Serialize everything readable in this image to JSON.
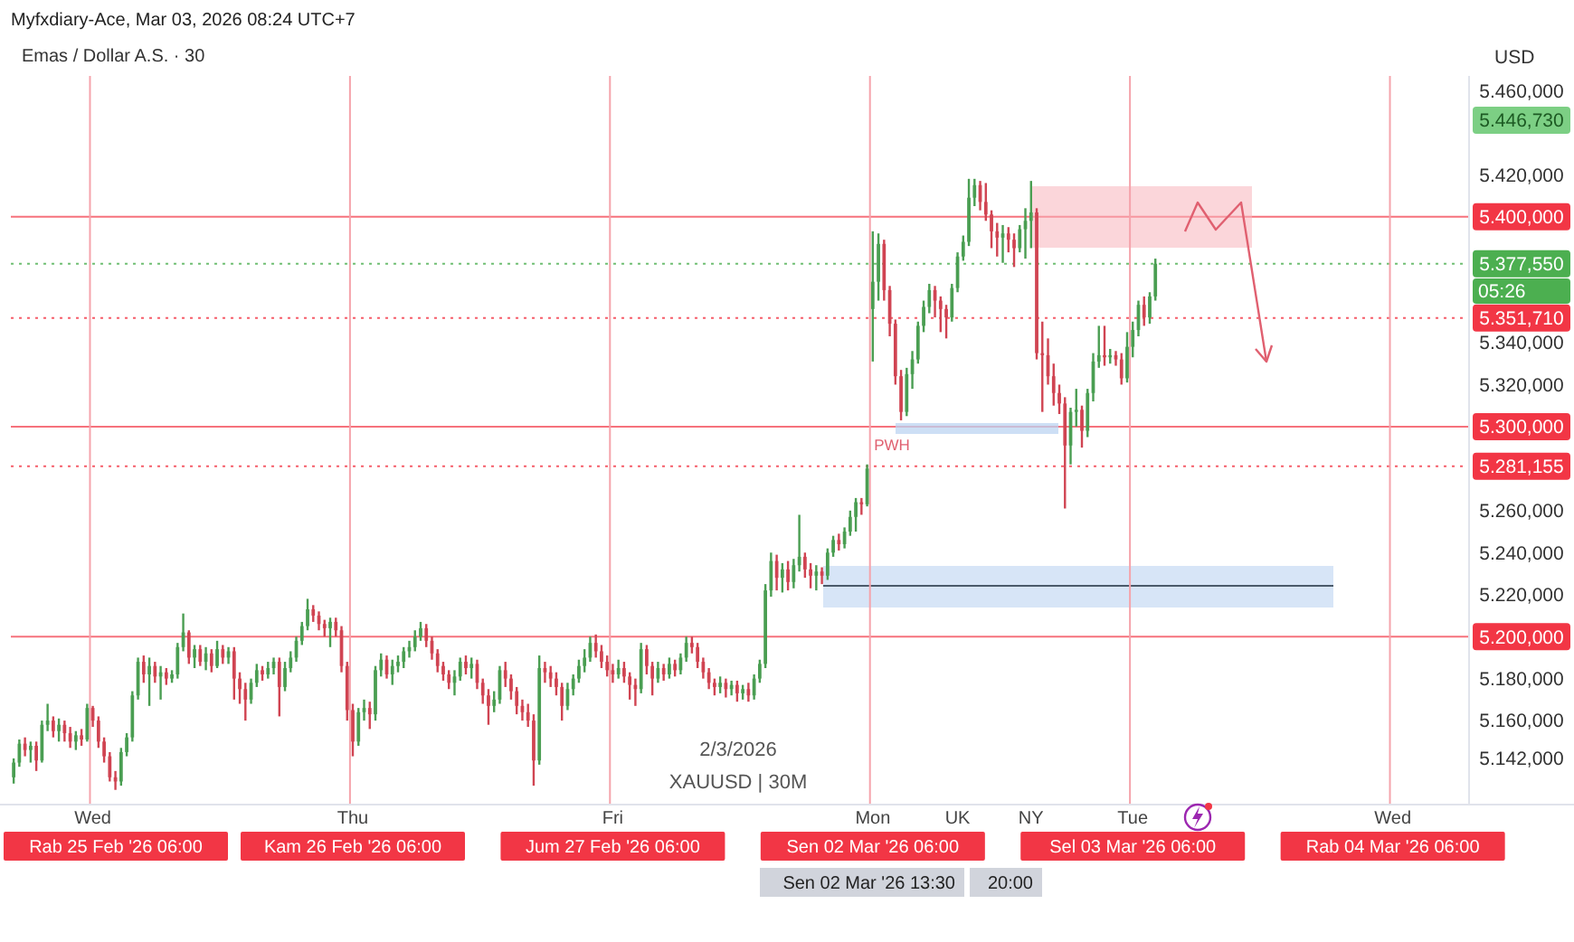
{
  "chart_data": {
    "type": "candlestick",
    "title": "Emas / Dollar A.S. · 30",
    "ylabel": "USD",
    "categories": [
      null,
      null,
      null,
      null,
      null,
      null,
      null,
      null,
      null,
      null,
      null,
      null,
      null,
      null,
      "Wed",
      null,
      null,
      null,
      null,
      null,
      null,
      null,
      null,
      null,
      null,
      null,
      null,
      null,
      null,
      null,
      null,
      null,
      null,
      null,
      null,
      null,
      null,
      null,
      null,
      null,
      null,
      null,
      null,
      null,
      null,
      null,
      null,
      null,
      null,
      null,
      null,
      null,
      null,
      null,
      null,
      null,
      null,
      null,
      null,
      null,
      "Thu",
      null,
      null,
      null,
      null,
      null,
      null,
      null,
      null,
      null,
      null,
      null,
      null,
      null,
      null,
      null,
      null,
      null,
      null,
      null,
      null,
      null,
      null,
      null,
      null,
      null,
      null,
      null,
      null,
      null,
      null,
      null,
      null,
      null,
      null,
      null,
      null,
      null,
      null,
      null,
      null,
      null,
      null,
      null,
      null,
      null,
      "Fri",
      null,
      null,
      null,
      null,
      null,
      null,
      null,
      null,
      null,
      null,
      null,
      null,
      null,
      null,
      null,
      null,
      null,
      null,
      null,
      null,
      null,
      null,
      null,
      null,
      null,
      null,
      null,
      null,
      null,
      null,
      null,
      null,
      null,
      null,
      null,
      null,
      null,
      null,
      null,
      null,
      null,
      null,
      null,
      null,
      null,
      "Mon",
      null,
      null,
      null,
      null,
      null,
      null,
      null,
      null,
      null,
      null,
      null,
      null,
      null,
      null,
      "UK",
      null,
      null,
      null,
      null,
      null,
      null,
      null,
      null,
      null,
      null,
      null,
      null,
      "NY",
      null,
      null,
      null,
      null,
      null,
      null,
      null,
      null,
      null,
      null,
      null,
      null,
      null,
      null,
      null,
      null,
      null,
      "Tue",
      null,
      null,
      null,
      null,
      null,
      null,
      null,
      null,
      null,
      null,
      null,
      null,
      null,
      null,
      null,
      null,
      null,
      null,
      null,
      null,
      null,
      null,
      null,
      null,
      null,
      null,
      null,
      null,
      null,
      null,
      null,
      null,
      null,
      null,
      null,
      null,
      null,
      null,
      null,
      null,
      null,
      null,
      null,
      null,
      null,
      "Wed",
      null,
      null,
      null,
      null,
      null,
      null,
      null,
      null,
      null,
      null,
      null,
      null,
      null
    ],
    "ohlc": [
      [
        5133,
        5142,
        5130,
        5140
      ],
      [
        5140,
        5151,
        5138,
        5149
      ],
      [
        5149,
        5152,
        5143,
        5146
      ],
      [
        5146,
        5150,
        5140,
        5148
      ],
      [
        5148,
        5150,
        5136,
        5141
      ],
      [
        5141,
        5160,
        5140,
        5158
      ],
      [
        5158,
        5168,
        5155,
        5160
      ],
      [
        5160,
        5162,
        5152,
        5155
      ],
      [
        5155,
        5161,
        5150,
        5158
      ],
      [
        5158,
        5160,
        5150,
        5154
      ],
      [
        5154,
        5157,
        5147,
        5150
      ],
      [
        5150,
        5155,
        5146,
        5153
      ],
      [
        5153,
        5156,
        5148,
        5151
      ],
      [
        5151,
        5168,
        5150,
        5166
      ],
      [
        5166,
        5167,
        5157,
        5160
      ],
      [
        5160,
        5162,
        5147,
        5150
      ],
      [
        5150,
        5152,
        5140,
        5143
      ],
      [
        5143,
        5145,
        5131,
        5133
      ],
      [
        5133,
        5136,
        5127,
        5131
      ],
      [
        5131,
        5147,
        5129,
        5145
      ],
      [
        5145,
        5154,
        5143,
        5152
      ],
      [
        5152,
        5174,
        5150,
        5172
      ],
      [
        5172,
        5190,
        5170,
        5188
      ],
      [
        5188,
        5191,
        5178,
        5182
      ],
      [
        5182,
        5190,
        5167,
        5186
      ],
      [
        5186,
        5188,
        5178,
        5181
      ],
      [
        5181,
        5186,
        5170,
        5183
      ],
      [
        5183,
        5185,
        5177,
        5180
      ],
      [
        5180,
        5184,
        5178,
        5182
      ],
      [
        5182,
        5197,
        5180,
        5195
      ],
      [
        5195,
        5211,
        5193,
        5202
      ],
      [
        5202,
        5203,
        5187,
        5190
      ],
      [
        5190,
        5196,
        5185,
        5194
      ],
      [
        5194,
        5196,
        5186,
        5188
      ],
      [
        5188,
        5195,
        5184,
        5192
      ],
      [
        5192,
        5194,
        5183,
        5186
      ],
      [
        5186,
        5198,
        5185,
        5194
      ],
      [
        5194,
        5196,
        5187,
        5190
      ],
      [
        5190,
        5195,
        5187,
        5193
      ],
      [
        5193,
        5195,
        5170,
        5180
      ],
      [
        5180,
        5183,
        5168,
        5175
      ],
      [
        5175,
        5178,
        5160,
        5170
      ],
      [
        5170,
        5180,
        5168,
        5178
      ],
      [
        5178,
        5187,
        5176,
        5184
      ],
      [
        5184,
        5186,
        5179,
        5182
      ],
      [
        5182,
        5188,
        5180,
        5185
      ],
      [
        5185,
        5190,
        5182,
        5188
      ],
      [
        5188,
        5190,
        5162,
        5176
      ],
      [
        5176,
        5188,
        5174,
        5185
      ],
      [
        5185,
        5193,
        5183,
        5190
      ],
      [
        5190,
        5200,
        5188,
        5198
      ],
      [
        5198,
        5207,
        5196,
        5205
      ],
      [
        5205,
        5218,
        5203,
        5213
      ],
      [
        5213,
        5215,
        5207,
        5210
      ],
      [
        5210,
        5212,
        5203,
        5206
      ],
      [
        5206,
        5208,
        5200,
        5204
      ],
      [
        5204,
        5209,
        5195,
        5207
      ],
      [
        5207,
        5209,
        5200,
        5203
      ],
      [
        5203,
        5205,
        5183,
        5186
      ],
      [
        5186,
        5188,
        5160,
        5165
      ],
      [
        5165,
        5168,
        5143,
        5150
      ],
      [
        5150,
        5166,
        5148,
        5164
      ],
      [
        5164,
        5170,
        5160,
        5166
      ],
      [
        5166,
        5169,
        5156,
        5163
      ],
      [
        5163,
        5186,
        5160,
        5184
      ],
      [
        5184,
        5192,
        5181,
        5189
      ],
      [
        5189,
        5191,
        5180,
        5182
      ],
      [
        5182,
        5189,
        5177,
        5186
      ],
      [
        5186,
        5191,
        5183,
        5188
      ],
      [
        5188,
        5195,
        5185,
        5193
      ],
      [
        5193,
        5198,
        5190,
        5195
      ],
      [
        5195,
        5203,
        5193,
        5200
      ],
      [
        5200,
        5207,
        5198,
        5204
      ],
      [
        5204,
        5206,
        5195,
        5198
      ],
      [
        5198,
        5200,
        5189,
        5192
      ],
      [
        5192,
        5194,
        5183,
        5186
      ],
      [
        5186,
        5188,
        5179,
        5182
      ],
      [
        5182,
        5184,
        5175,
        5178
      ],
      [
        5178,
        5184,
        5172,
        5181
      ],
      [
        5181,
        5190,
        5179,
        5188
      ],
      [
        5188,
        5191,
        5182,
        5185
      ],
      [
        5185,
        5190,
        5180,
        5187
      ],
      [
        5187,
        5189,
        5175,
        5178
      ],
      [
        5178,
        5180,
        5168,
        5172
      ],
      [
        5172,
        5175,
        5158,
        5167
      ],
      [
        5167,
        5174,
        5164,
        5170
      ],
      [
        5170,
        5186,
        5168,
        5184
      ],
      [
        5184,
        5188,
        5176,
        5180
      ],
      [
        5180,
        5182,
        5170,
        5174
      ],
      [
        5174,
        5176,
        5163,
        5167
      ],
      [
        5167,
        5170,
        5160,
        5164
      ],
      [
        5164,
        5168,
        5157,
        5160
      ],
      [
        5160,
        5163,
        5129,
        5141
      ],
      [
        5141,
        5191,
        5139,
        5185
      ],
      [
        5185,
        5188,
        5178,
        5183
      ],
      [
        5183,
        5186,
        5176,
        5180
      ],
      [
        5180,
        5183,
        5172,
        5176
      ],
      [
        5176,
        5178,
        5160,
        5167
      ],
      [
        5167,
        5178,
        5165,
        5175
      ],
      [
        5175,
        5182,
        5172,
        5180
      ],
      [
        5180,
        5189,
        5178,
        5186
      ],
      [
        5186,
        5194,
        5183,
        5190
      ],
      [
        5190,
        5200,
        5188,
        5197
      ],
      [
        5197,
        5201,
        5190,
        5193
      ],
      [
        5193,
        5196,
        5185,
        5188
      ],
      [
        5188,
        5191,
        5181,
        5184
      ],
      [
        5184,
        5187,
        5178,
        5182
      ],
      [
        5182,
        5189,
        5180,
        5185
      ],
      [
        5185,
        5188,
        5178,
        5181
      ],
      [
        5181,
        5183,
        5170,
        5177
      ],
      [
        5177,
        5180,
        5167,
        5175
      ],
      [
        5175,
        5197,
        5173,
        5194
      ],
      [
        5194,
        5196,
        5182,
        5186
      ],
      [
        5186,
        5188,
        5172,
        5180
      ],
      [
        5180,
        5188,
        5178,
        5185
      ],
      [
        5185,
        5187,
        5179,
        5182
      ],
      [
        5182,
        5190,
        5180,
        5187
      ],
      [
        5187,
        5189,
        5181,
        5184
      ],
      [
        5184,
        5192,
        5182,
        5190
      ],
      [
        5190,
        5200,
        5188,
        5197
      ],
      [
        5197,
        5200,
        5192,
        5195
      ],
      [
        5195,
        5197,
        5185,
        5188
      ],
      [
        5188,
        5190,
        5180,
        5183
      ],
      [
        5183,
        5185,
        5175,
        5178
      ],
      [
        5178,
        5180,
        5172,
        5176
      ],
      [
        5176,
        5181,
        5173,
        5178
      ],
      [
        5178,
        5180,
        5171,
        5175
      ],
      [
        5175,
        5179,
        5172,
        5177
      ],
      [
        5177,
        5179,
        5169,
        5173
      ],
      [
        5173,
        5177,
        5170,
        5175
      ],
      [
        5175,
        5178,
        5169,
        5172
      ],
      [
        5172,
        5182,
        5170,
        5180
      ],
      [
        5180,
        5189,
        5178,
        5187
      ],
      [
        5187,
        5225,
        5185,
        5222
      ],
      [
        5222,
        5240,
        5219,
        5236
      ],
      [
        5236,
        5239,
        5222,
        5228
      ],
      [
        5228,
        5235,
        5221,
        5232
      ],
      [
        5232,
        5236,
        5222,
        5226
      ],
      [
        5226,
        5237,
        5223,
        5234
      ],
      [
        5234,
        5258,
        5231,
        5238
      ],
      [
        5238,
        5240,
        5228,
        5232
      ],
      [
        5232,
        5235,
        5223,
        5229
      ],
      [
        5229,
        5234,
        5222,
        5231
      ],
      [
        5231,
        5233,
        5225,
        5229
      ],
      [
        5229,
        5242,
        5227,
        5240
      ],
      [
        5240,
        5248,
        5238,
        5246
      ],
      [
        5246,
        5249,
        5241,
        5244
      ],
      [
        5244,
        5252,
        5242,
        5250
      ],
      [
        5250,
        5260,
        5248,
        5257
      ],
      [
        5257,
        5266,
        5250,
        5264
      ],
      [
        5264,
        5266,
        5258,
        5263
      ],
      [
        5263,
        5282,
        5262,
        5280
      ],
      [
        5356,
        5393,
        5331,
        5369
      ],
      [
        5369,
        5392,
        5360,
        5387
      ],
      [
        5387,
        5389,
        5360,
        5365
      ],
      [
        5365,
        5367,
        5343,
        5349
      ],
      [
        5349,
        5351,
        5320,
        5324
      ],
      [
        5324,
        5327,
        5303,
        5307
      ],
      [
        5307,
        5328,
        5305,
        5325
      ],
      [
        5325,
        5336,
        5318,
        5332
      ],
      [
        5332,
        5350,
        5330,
        5348
      ],
      [
        5348,
        5360,
        5345,
        5357
      ],
      [
        5357,
        5368,
        5354,
        5365
      ],
      [
        5365,
        5367,
        5352,
        5360
      ],
      [
        5360,
        5362,
        5345,
        5356
      ],
      [
        5356,
        5358,
        5342,
        5352
      ],
      [
        5352,
        5368,
        5350,
        5366
      ],
      [
        5366,
        5383,
        5364,
        5381
      ],
      [
        5381,
        5391,
        5379,
        5388
      ],
      [
        5388,
        5418,
        5386,
        5409
      ],
      [
        5409,
        5418,
        5405,
        5415
      ],
      [
        5415,
        5417,
        5403,
        5407
      ],
      [
        5407,
        5416,
        5398,
        5401
      ],
      [
        5401,
        5403,
        5385,
        5393
      ],
      [
        5393,
        5397,
        5381,
        5390
      ],
      [
        5390,
        5396,
        5378,
        5392
      ],
      [
        5392,
        5395,
        5383,
        5389
      ],
      [
        5389,
        5392,
        5376,
        5385
      ],
      [
        5385,
        5396,
        5383,
        5394
      ],
      [
        5394,
        5404,
        5380,
        5398
      ],
      [
        5398,
        5417,
        5385,
        5402
      ],
      [
        5402,
        5404,
        5332,
        5335
      ],
      [
        5335,
        5350,
        5307,
        5334
      ],
      [
        5334,
        5342,
        5320,
        5324
      ],
      [
        5324,
        5330,
        5310,
        5316
      ],
      [
        5316,
        5320,
        5306,
        5311
      ],
      [
        5311,
        5314,
        5261,
        5291
      ],
      [
        5291,
        5309,
        5282,
        5307
      ],
      [
        5307,
        5318,
        5300,
        5308
      ],
      [
        5308,
        5310,
        5290,
        5298
      ],
      [
        5298,
        5318,
        5295,
        5316
      ],
      [
        5316,
        5335,
        5312,
        5331
      ],
      [
        5331,
        5348,
        5328,
        5334
      ],
      [
        5334,
        5348,
        5329,
        5333
      ],
      [
        5333,
        5337,
        5330,
        5334
      ],
      [
        5334,
        5336,
        5329,
        5332
      ],
      [
        5332,
        5335,
        5320,
        5323
      ],
      [
        5323,
        5345,
        5321,
        5338
      ],
      [
        5338,
        5350,
        5333,
        5346
      ],
      [
        5346,
        5360,
        5343,
        5358
      ],
      [
        5358,
        5362,
        5348,
        5352
      ],
      [
        5352,
        5364,
        5349,
        5362
      ],
      [
        5362,
        5380,
        5360,
        5377.55
      ],
      null,
      null,
      null,
      null,
      null,
      null,
      null,
      null,
      null,
      null,
      null,
      null,
      null,
      null,
      null,
      null,
      null,
      null,
      null,
      null,
      null,
      null,
      null,
      null,
      null,
      null,
      null,
      null,
      null,
      null,
      null,
      null,
      null,
      null,
      null,
      null,
      null,
      null,
      null,
      null,
      null,
      null,
      null,
      null,
      null,
      null,
      null,
      null,
      null,
      null,
      null,
      null,
      null,
      null,
      null
    ],
    "ylim": [
      5120,
      5467
    ],
    "yticks": [
      {
        "value": 5142,
        "label": "5.142,000"
      },
      {
        "value": 5160,
        "label": "5.160,000"
      },
      {
        "value": 5180,
        "label": "5.180,000"
      },
      {
        "value": 5220,
        "label": "5.220,000"
      },
      {
        "value": 5240,
        "label": "5.240,000"
      },
      {
        "value": 5260,
        "label": "5.260,000"
      },
      {
        "value": 5320,
        "label": "5.320,000"
      },
      {
        "value": 5340,
        "label": "5.340,000"
      },
      {
        "value": 5420,
        "label": "5.420,000"
      },
      {
        "value": 5460,
        "label": "5.460,000"
      }
    ],
    "ref_lines": [
      {
        "axis": "y",
        "value": 5400,
        "label": "5.400,000",
        "color": "#f23645"
      },
      {
        "axis": "y",
        "value": 5300,
        "label": "5.300,000",
        "color": "#f23645"
      },
      {
        "axis": "y",
        "value": 5200,
        "label": "5.200,000",
        "color": "#f23645"
      },
      {
        "axis": "y",
        "value": 5377.55,
        "label": "5.377,550",
        "color": "#4caf50",
        "line_style": "dotted"
      },
      {
        "axis": "y",
        "value": 5351.71,
        "label": "5.351,710",
        "color": "#f23645",
        "line_style": "dotted"
      },
      {
        "axis": "y",
        "value": 5281.155,
        "label": "5.281,155",
        "color": "#f23645",
        "line_style": "dotted"
      }
    ],
    "annotations": [
      "Myfxdiary-Ace, Mar 03, 2026 08:24 UTC+7",
      "2/3/2026",
      "XAUUSD | 30M",
      "PWH",
      "5.446,730",
      "05:26",
      "Sen 02 Mar '26  13:30",
      "20:00",
      "Rab 25 Feb '26  06:00",
      "Kam 26 Feb '26  06:00",
      "Jum 27 Feb '26  06:00",
      "Sen 02 Mar '26  06:00",
      "Sel 03 Mar '26  06:00",
      "Rab 04 Mar '26  06:00"
    ]
  }
}
